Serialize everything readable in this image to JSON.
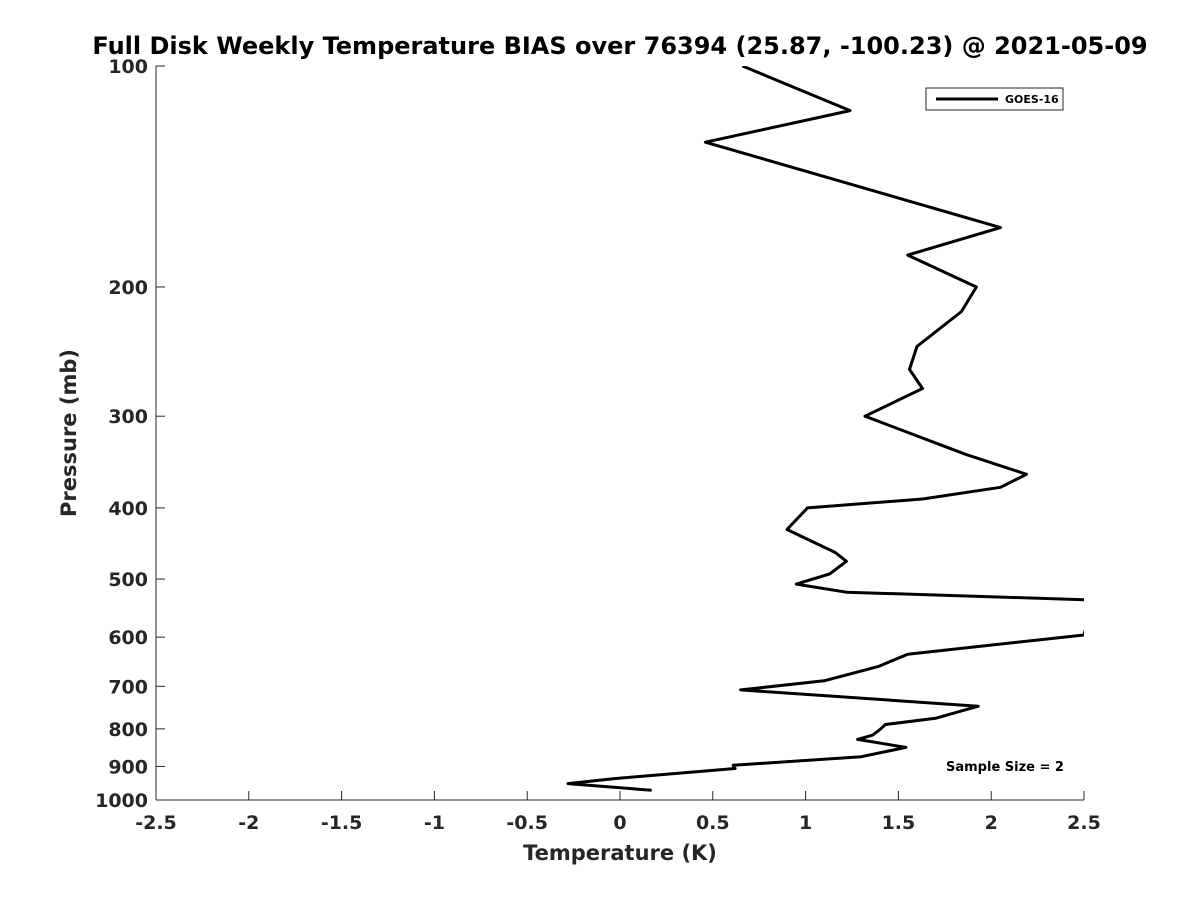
{
  "chart_data": {
    "type": "line",
    "title": "Full Disk Weekly Temperature BIAS over 76394 (25.87, -100.23) @ 2021-05-09",
    "xlabel": "Temperature (K)",
    "ylabel": "Pressure (mb)",
    "xlim": [
      -2.5,
      2.5
    ],
    "ylim": [
      1000,
      100
    ],
    "y_scale": "log",
    "y_reversed": true,
    "x_ticks": [
      -2.5,
      -2,
      -1.5,
      -1,
      -0.5,
      0,
      0.5,
      1,
      1.5,
      2,
      2.5
    ],
    "x_tick_labels": [
      "-2.5",
      "-2",
      "-1.5",
      "-1",
      "-0.5",
      "0",
      "0.5",
      "1",
      "1.5",
      "2",
      "2.5"
    ],
    "y_ticks": [
      100,
      200,
      300,
      400,
      500,
      600,
      700,
      800,
      900,
      1000
    ],
    "y_tick_labels": [
      "100",
      "200",
      "300",
      "400",
      "500",
      "600",
      "700",
      "800",
      "900",
      "1000"
    ],
    "grid": false,
    "legend_position": "top-right",
    "series": [
      {
        "name": "GOES-16",
        "color": "#000000",
        "x": [
          0.66,
          1.24,
          0.46,
          2.05,
          1.55,
          1.92,
          1.84,
          1.6,
          1.56,
          1.63,
          1.32,
          1.86,
          2.19,
          2.05,
          1.63,
          1.01,
          0.9,
          1.16,
          1.22,
          1.13,
          0.95,
          1.22,
          2.55,
          2.5,
          1.55,
          1.39,
          1.1,
          0.65,
          1.93,
          1.7,
          1.43,
          1.4,
          1.36,
          1.28,
          1.54,
          1.3,
          0.61,
          0.62,
          -0.03,
          -0.28,
          0.17
        ],
        "y": [
          100,
          115,
          127,
          166,
          181,
          200,
          216,
          241,
          259,
          275,
          300,
          338,
          360,
          375,
          389,
          400,
          428,
          460,
          473,
          492,
          508,
          521,
          534,
          596,
          633,
          658,
          688,
          708,
          745,
          774,
          789,
          802,
          816,
          827,
          848,
          873,
          897,
          906,
          935,
          950,
          970
        ]
      }
    ],
    "annotations": [
      {
        "text": "Sample Size = 2",
        "x": 1.7,
        "y": 900
      }
    ]
  }
}
